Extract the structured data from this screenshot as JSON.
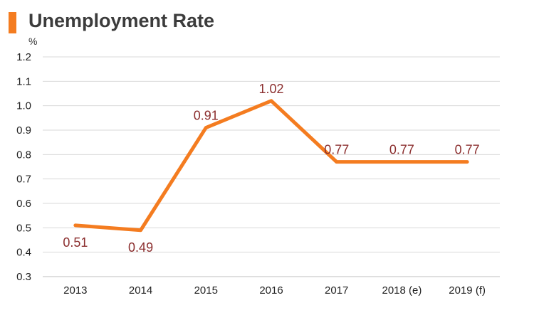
{
  "chart_data": {
    "type": "line",
    "title": "Unemployment Rate",
    "ylabel": "%",
    "categories": [
      "2013",
      "2014",
      "2015",
      "2016",
      "2017",
      "2018 (e)",
      "2019 (f)"
    ],
    "values": [
      0.51,
      0.49,
      0.91,
      1.02,
      0.77,
      0.77,
      0.77
    ],
    "data_labels": [
      "0.51",
      "0.49",
      "0.91",
      "1.02",
      "0.77",
      "0.77",
      "0.77"
    ],
    "yticks": [
      "1.2",
      "1.1",
      "1.0",
      "0.9",
      "0.8",
      "0.7",
      "0.6",
      "0.5",
      "0.4",
      "0.3"
    ],
    "ylim": [
      0.3,
      1.2
    ],
    "grid": true,
    "legend": "none",
    "line_color": "#f47c20",
    "label_color": "#8b2e2e"
  }
}
